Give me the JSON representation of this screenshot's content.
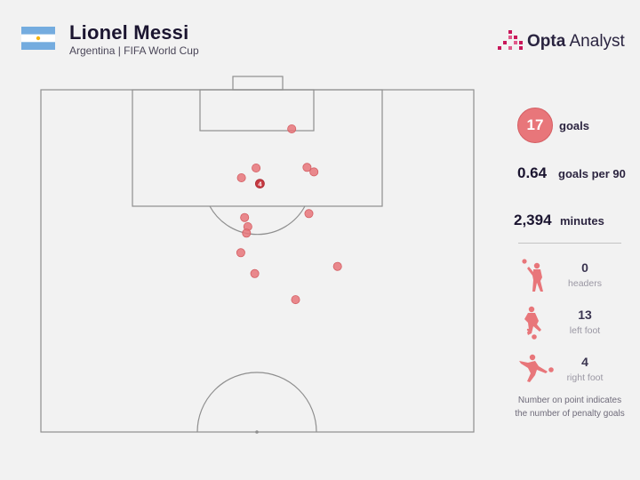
{
  "header": {
    "player_name": "Lionel Messi",
    "subtitle": "Argentina | FIFA World Cup",
    "logo_text_bold": "Opta",
    "logo_text_rest": " Analyst"
  },
  "colors": {
    "goal_marker": "#e8767a",
    "penalty_marker": "#c63a42",
    "flag_blue": "#74acdf",
    "flag_sun": "#f6b40e",
    "logo_accent": "#c8175a"
  },
  "stats": {
    "goals_value": "17",
    "goals_label": "goals",
    "goals_per_90_value": "0.64",
    "goals_per_90_label": "goals per 90",
    "minutes_value": "2,394",
    "minutes_label": "minutes"
  },
  "goal_types": [
    {
      "icon": "header-player-icon",
      "value": "0",
      "label": "headers"
    },
    {
      "icon": "left-foot-player-icon",
      "value": "13",
      "label": "left foot"
    },
    {
      "icon": "right-foot-player-icon",
      "value": "4",
      "label": "right foot"
    }
  ],
  "footnote": {
    "line1": "Number on point indicates",
    "line2": "the number of penalty goals"
  },
  "chart_data": {
    "type": "scatter",
    "description_units": "pitch coordinates in metres: x = across pitch from left touchline (0-68), y = distance from goal line (0-52.5, half pitch)",
    "points": [
      {
        "x": 39.4,
        "y": 6.0,
        "penalties": 0
      },
      {
        "x": 33.8,
        "y": 12.0,
        "penalties": 0
      },
      {
        "x": 31.5,
        "y": 13.5,
        "penalties": 0
      },
      {
        "x": 41.8,
        "y": 11.9,
        "penalties": 0
      },
      {
        "x": 42.9,
        "y": 12.6,
        "penalties": 0
      },
      {
        "x": 34.4,
        "y": 14.4,
        "penalties": 4
      },
      {
        "x": 42.1,
        "y": 19.0,
        "penalties": 0
      },
      {
        "x": 32.0,
        "y": 19.6,
        "penalties": 0
      },
      {
        "x": 32.5,
        "y": 21.0,
        "penalties": 0
      },
      {
        "x": 32.3,
        "y": 22.0,
        "penalties": 0
      },
      {
        "x": 31.4,
        "y": 25.0,
        "penalties": 0
      },
      {
        "x": 46.6,
        "y": 27.1,
        "penalties": 0
      },
      {
        "x": 33.6,
        "y": 28.2,
        "penalties": 0
      },
      {
        "x": 40.0,
        "y": 32.2,
        "penalties": 0
      }
    ]
  }
}
